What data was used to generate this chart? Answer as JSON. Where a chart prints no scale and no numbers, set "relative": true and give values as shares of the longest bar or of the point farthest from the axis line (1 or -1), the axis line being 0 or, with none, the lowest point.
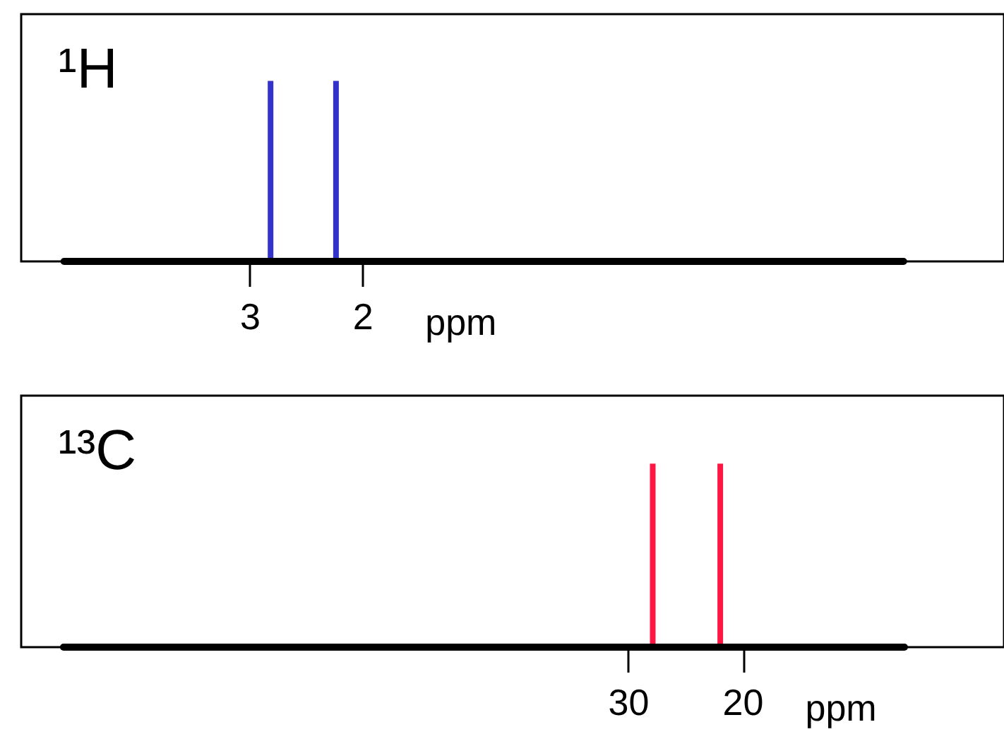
{
  "chart_data": [
    {
      "type": "bar",
      "title": "¹H",
      "xlabel": "ppm",
      "relative": true,
      "xlim": [
        5.03,
        -3.68
      ],
      "xticks": [
        3,
        2
      ],
      "grid": false,
      "series": [
        {
          "color": "#3333cc",
          "x": [
            2.82,
            2.24
          ],
          "values": [
            1,
            1
          ]
        },
        {
          "type": "line",
          "color": "#000000",
          "x": [
            4.65,
            -2.79
          ],
          "values": [
            0,
            0
          ],
          "marker": "none"
        }
      ]
    },
    {
      "type": "bar",
      "title": "¹³C",
      "xlabel": "ppm",
      "relative": true,
      "xlim": [
        83.1,
        -2.8
      ],
      "xticks": [
        30,
        20
      ],
      "grid": false,
      "series": [
        {
          "color": "#ff1744",
          "x": [
            27.9,
            22.0
          ],
          "values": [
            1,
            1
          ]
        },
        {
          "type": "line",
          "color": "#000000",
          "x": [
            79.4,
            5.9
          ],
          "values": [
            0,
            0
          ],
          "marker": "none"
        }
      ]
    }
  ]
}
